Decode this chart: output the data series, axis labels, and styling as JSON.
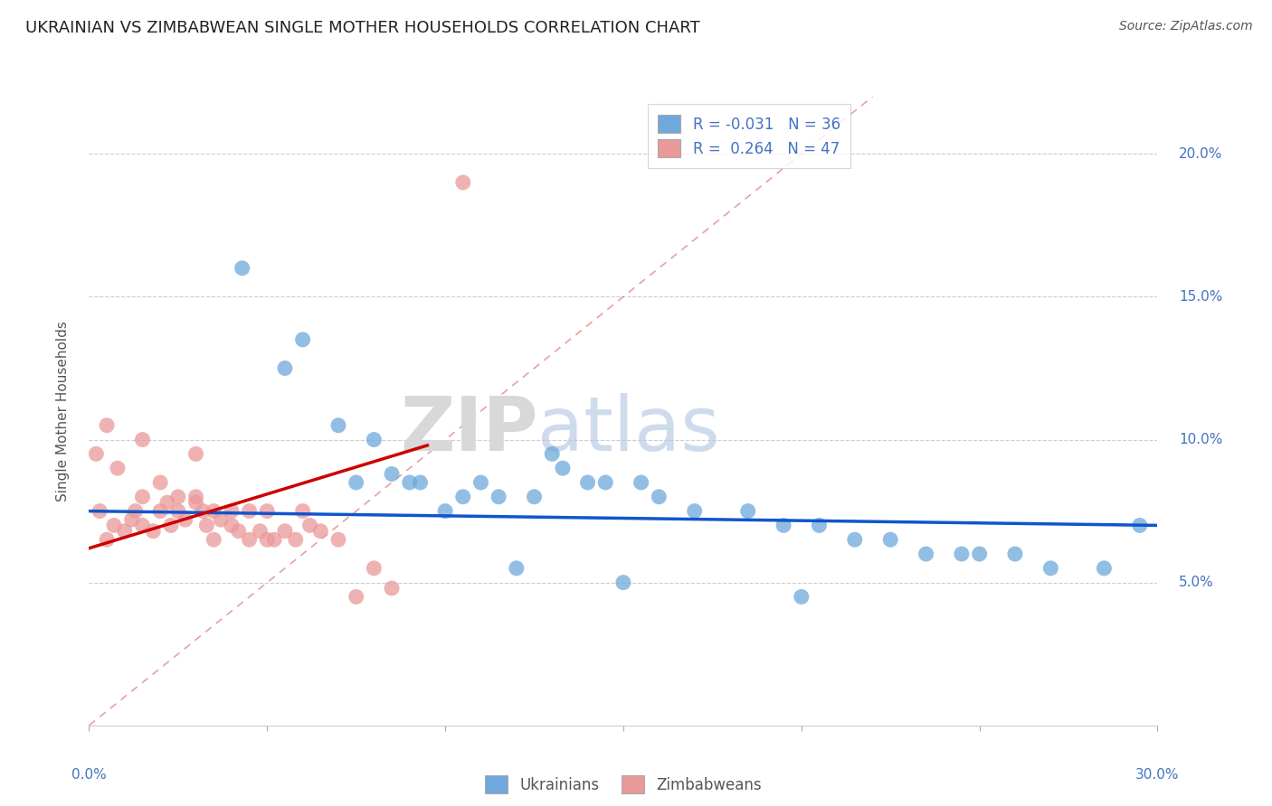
{
  "title": "UKRAINIAN VS ZIMBABWEAN SINGLE MOTHER HOUSEHOLDS CORRELATION CHART",
  "source": "Source: ZipAtlas.com",
  "ylabel": "Single Mother Households",
  "r_ukrainian": -0.031,
  "n_ukrainian": 36,
  "r_zimbabwean": 0.264,
  "n_zimbabwean": 47,
  "xlim": [
    0.0,
    30.0
  ],
  "ylim": [
    0.0,
    22.0
  ],
  "background_color": "#ffffff",
  "blue_color": "#6fa8dc",
  "pink_color": "#ea9999",
  "blue_line_color": "#1155cc",
  "pink_line_color": "#cc0000",
  "diag_line_color": "#cc4444",
  "watermark_zip": "ZIP",
  "watermark_atlas": "atlas",
  "ukrainians_x": [
    4.3,
    6.0,
    7.5,
    8.5,
    9.0,
    9.3,
    10.0,
    10.5,
    11.0,
    11.5,
    12.5,
    13.0,
    13.3,
    14.0,
    14.5,
    15.5,
    16.0,
    17.0,
    18.5,
    19.5,
    20.5,
    21.5,
    22.5,
    23.5,
    24.5,
    25.0,
    26.0,
    27.0,
    28.5,
    29.5,
    5.5,
    7.0,
    8.0,
    12.0,
    15.0,
    20.0
  ],
  "ukrainians_y": [
    16.0,
    13.5,
    8.5,
    8.8,
    8.5,
    8.5,
    7.5,
    8.0,
    8.5,
    8.0,
    8.0,
    9.5,
    9.0,
    8.5,
    8.5,
    8.5,
    8.0,
    7.5,
    7.5,
    7.0,
    7.0,
    6.5,
    6.5,
    6.0,
    6.0,
    6.0,
    6.0,
    5.5,
    5.5,
    7.0,
    12.5,
    10.5,
    10.0,
    5.5,
    5.0,
    4.5
  ],
  "zimbabweans_x": [
    0.3,
    0.5,
    0.7,
    1.0,
    1.2,
    1.3,
    1.5,
    1.5,
    1.8,
    2.0,
    2.0,
    2.2,
    2.3,
    2.5,
    2.5,
    2.7,
    3.0,
    3.0,
    3.2,
    3.3,
    3.5,
    3.5,
    3.7,
    4.0,
    4.0,
    4.2,
    4.5,
    4.5,
    4.8,
    5.0,
    5.0,
    5.2,
    5.5,
    5.8,
    6.0,
    6.2,
    6.5,
    7.0,
    7.5,
    8.0,
    8.5,
    0.5,
    1.5,
    3.0,
    10.5,
    0.2,
    0.8
  ],
  "zimbabweans_y": [
    7.5,
    6.5,
    7.0,
    6.8,
    7.2,
    7.5,
    7.0,
    8.0,
    6.8,
    7.5,
    8.5,
    7.8,
    7.0,
    7.5,
    8.0,
    7.2,
    7.8,
    8.0,
    7.5,
    7.0,
    6.5,
    7.5,
    7.2,
    7.0,
    7.5,
    6.8,
    7.5,
    6.5,
    6.8,
    7.5,
    6.5,
    6.5,
    6.8,
    6.5,
    7.5,
    7.0,
    6.8,
    6.5,
    4.5,
    5.5,
    4.8,
    10.5,
    10.0,
    9.5,
    19.0,
    9.5,
    9.0
  ]
}
